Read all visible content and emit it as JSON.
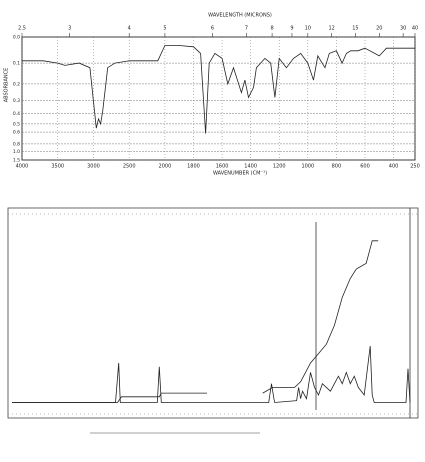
{
  "chart_data": [
    {
      "type": "ir",
      "x2label": "WAVELENGTH (MICRONS)",
      "xlabel": "WAVENUMBER (CM⁻¹)",
      "ylabel": "ABSORBANCE",
      "xlim": [
        4000,
        250
      ],
      "x_scale_break": 2000,
      "ylim": [
        0,
        1.5
      ],
      "grid": true,
      "xticks": [
        4000,
        3500,
        3000,
        2500,
        2000,
        1800,
        1600,
        1400,
        1200,
        1000,
        800,
        600,
        400,
        250
      ],
      "x2ticks": [
        {
          "value": 4000,
          "label": "2.5"
        },
        {
          "value": 3333,
          "label": "3"
        },
        {
          "value": 2500,
          "label": "4"
        },
        {
          "value": 2000,
          "label": "5"
        },
        {
          "value": 1667,
          "label": "6"
        },
        {
          "value": 1429,
          "label": "7"
        },
        {
          "value": 1250,
          "label": "8"
        },
        {
          "value": 1111,
          "label": "9"
        },
        {
          "value": 1000,
          "label": "10"
        },
        {
          "value": 833,
          "label": "12"
        },
        {
          "value": 667,
          "label": "15"
        },
        {
          "value": 500,
          "label": "20"
        },
        {
          "value": 333,
          "label": "30"
        },
        {
          "value": 250,
          "label": "40"
        }
      ],
      "yticks": [
        {
          "value": 0,
          "label": "0.0"
        },
        0.1,
        0.2,
        0.3,
        0.4,
        0.5,
        0.6,
        0.8,
        {
          "value": 1,
          "label": "1.0"
        },
        1.5
      ],
      "series": [
        {
          "color": "#222",
          "x": [
            4000,
            3700,
            3500,
            3400,
            3200,
            3050,
            2960,
            2930,
            2900,
            2870,
            2800,
            2700,
            2500,
            2300,
            2100,
            2000,
            1900,
            1800,
            1750,
            1715,
            1690,
            1650,
            1600,
            1560,
            1520,
            1465,
            1440,
            1415,
            1380,
            1360,
            1300,
            1260,
            1230,
            1200,
            1150,
            1100,
            1050,
            1000,
            960,
            930,
            880,
            850,
            800,
            760,
            730,
            700,
            650,
            600,
            500,
            450,
            400,
            250
          ],
          "values": [
            0.09,
            0.09,
            0.1,
            0.11,
            0.1,
            0.12,
            0.55,
            0.45,
            0.5,
            0.38,
            0.12,
            0.1,
            0.09,
            0.09,
            0.09,
            0.03,
            0.03,
            0.035,
            0.06,
            0.62,
            0.1,
            0.06,
            0.08,
            0.2,
            0.12,
            0.25,
            0.18,
            0.28,
            0.22,
            0.12,
            0.08,
            0.1,
            0.28,
            0.08,
            0.12,
            0.08,
            0.06,
            0.1,
            0.18,
            0.07,
            0.12,
            0.06,
            0.05,
            0.1,
            0.06,
            0.05,
            0.05,
            0.04,
            0.07,
            0.04,
            0.04,
            0.04
          ]
        }
      ]
    },
    {
      "type": "nmr",
      "xlim": [
        10,
        0
      ],
      "ylim": [
        0,
        100
      ],
      "series": [
        {
          "color": "#222",
          "x": [
            10,
            7.4,
            7.32,
            7.28,
            6.35,
            6.3,
            6.25,
            3.55,
            3.48,
            3.42,
            3.4,
            2.85,
            2.8,
            2.75,
            2.7,
            2.6,
            2.5,
            2.4,
            2.3,
            2.2,
            2.0,
            1.8,
            1.7,
            1.6,
            1.5,
            1.4,
            1.3,
            1.15,
            1.0,
            0.95,
            0.9,
            0.1,
            0.05,
            0.0
          ],
          "values": [
            4,
            4,
            25,
            4,
            4,
            23,
            4,
            4,
            14,
            6,
            4,
            5,
            12,
            6,
            10,
            6,
            20,
            12,
            8,
            14,
            10,
            18,
            14,
            20,
            14,
            18,
            12,
            8,
            34,
            8,
            4,
            4,
            22,
            4
          ]
        },
        {
          "color": "#222",
          "x": [
            10,
            7.35,
            7.25,
            6.3,
            6.25,
            5.1,
            4.5,
            3.7,
            3.45,
            2.9,
            2.75,
            2.5,
            2.3,
            2.1,
            1.9,
            1.7,
            1.5,
            1.35,
            1.1,
            1.0,
            0.95,
            0.8
          ],
          "values": [
            4,
            4,
            7,
            7,
            9,
            9,
            null,
            9,
            12,
            12,
            15,
            25,
            30,
            35,
            45,
            60,
            70,
            75,
            78,
            86,
            90,
            90
          ]
        }
      ]
    }
  ]
}
